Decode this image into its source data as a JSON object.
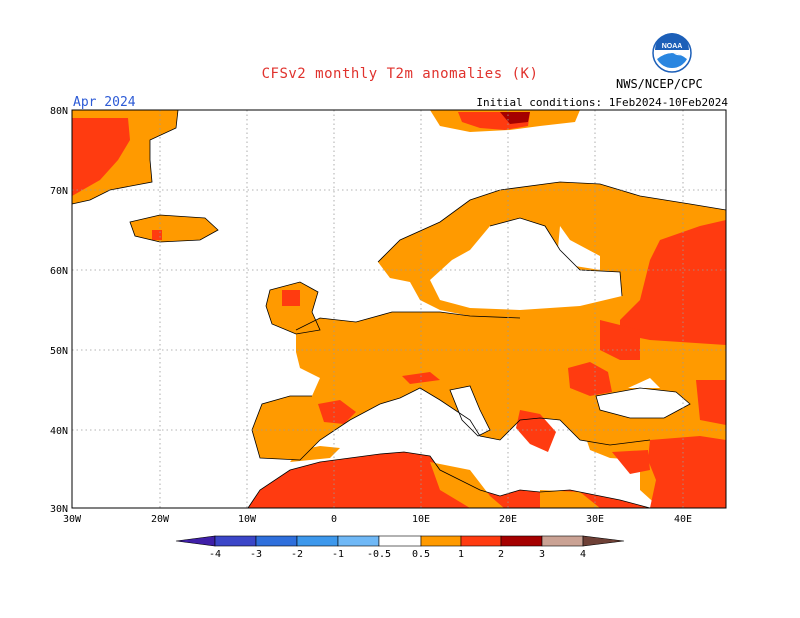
{
  "header": {
    "title": "CFSv2 monthly T2m anomalies (K)",
    "valid_month": "Apr 2024",
    "initial_conditions": "Initial conditions: 1Feb2024-10Feb2024",
    "agency": "NWS/NCEP/CPC"
  },
  "logo": {
    "icon": "noaa-logo-icon",
    "text": "NOAA"
  },
  "axes": {
    "lat_labels": [
      "80N",
      "70N",
      "60N",
      "50N",
      "40N",
      "30N"
    ],
    "lon_labels": [
      "30W",
      "20W",
      "10W",
      "0",
      "10E",
      "20E",
      "30E",
      "40E"
    ]
  },
  "colorbar": {
    "labels": [
      "-4",
      "-3",
      "-2",
      "-1",
      "-0.5",
      "0.5",
      "1",
      "2",
      "3",
      "4"
    ],
    "colors": [
      "#3f1fa8",
      "#3b46c8",
      "#2f6fdc",
      "#3d98ec",
      "#6fb8f6",
      "#ffffff",
      "#ff9a00",
      "#ff3b10",
      "#a50000",
      "#caa294",
      "#6e4036"
    ]
  },
  "colors": {
    "orange": "#ff9a00",
    "red": "#ff3b10",
    "darkred": "#a50000",
    "coast": "#000000",
    "grid": "#9a9a9a"
  }
}
